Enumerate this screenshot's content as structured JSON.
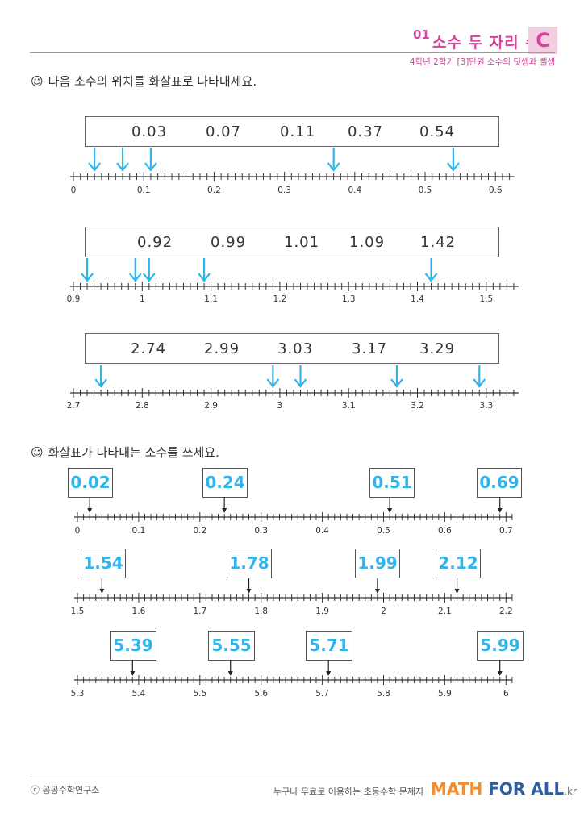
{
  "header": {
    "number": "01",
    "title": "소수 두 자리 수",
    "level": "C",
    "subtitle": "4학년 2학기 [3]단원 소수의 덧셈과 뺄셈"
  },
  "section1": {
    "instruction": "다음 소수의 위치를 화살표로 나타내세요.",
    "problems": [
      {
        "numbers": [
          "0.03",
          "0.07",
          "0.11",
          "0.37",
          "0.54"
        ],
        "start": 0,
        "step": 0.01,
        "ticks": 63,
        "majors": [
          0,
          0.1,
          0.2,
          0.3,
          0.4,
          0.5,
          0.6
        ],
        "major_labels": [
          "0",
          "0.1",
          "0.2",
          "0.3",
          "0.4",
          "0.5",
          "0.6"
        ],
        "arrows": [
          0.03,
          0.07,
          0.11,
          0.37,
          0.54
        ]
      },
      {
        "numbers": [
          "0.92",
          "0.99",
          "1.01",
          "1.09",
          "1.42"
        ],
        "start": 0.9,
        "step": 0.01,
        "ticks": 65,
        "majors": [
          0.9,
          1.0,
          1.1,
          1.2,
          1.3,
          1.4,
          1.5
        ],
        "major_labels": [
          "0.9",
          "1",
          "1.1",
          "1.2",
          "1.3",
          "1.4",
          "1.5"
        ],
        "arrows": [
          0.92,
          0.99,
          1.01,
          1.09,
          1.42
        ]
      },
      {
        "numbers": [
          "2.74",
          "2.99",
          "3.03",
          "3.17",
          "3.29"
        ],
        "start": 2.7,
        "step": 0.01,
        "ticks": 65,
        "majors": [
          2.7,
          2.8,
          2.9,
          3.0,
          3.1,
          3.2,
          3.3
        ],
        "major_labels": [
          "2.7",
          "2.8",
          "2.9",
          "3",
          "3.1",
          "3.2",
          "3.3"
        ],
        "arrows": [
          2.74,
          2.99,
          3.03,
          3.17,
          3.29
        ]
      }
    ]
  },
  "section2": {
    "instruction": "화살표가 나타내는 소수를 쓰세요.",
    "problems": [
      {
        "start": 0,
        "step": 0.01,
        "major_labels": [
          "0",
          "0.1",
          "0.2",
          "0.3",
          "0.4",
          "0.5",
          "0.6",
          "0.7"
        ],
        "answers": [
          {
            "value": 0.02,
            "text": "0.02"
          },
          {
            "value": 0.24,
            "text": "0.24"
          },
          {
            "value": 0.51,
            "text": "0.51"
          },
          {
            "value": 0.69,
            "text": "0.69"
          }
        ]
      },
      {
        "start": 1.5,
        "step": 0.01,
        "major_labels": [
          "1.5",
          "1.6",
          "1.7",
          "1.8",
          "1.9",
          "2",
          "2.1",
          "2.2"
        ],
        "answers": [
          {
            "value": 1.54,
            "text": "1.54"
          },
          {
            "value": 1.78,
            "text": "1.78"
          },
          {
            "value": 1.99,
            "text": "1.99"
          },
          {
            "value": 2.12,
            "text": "2.12"
          }
        ]
      },
      {
        "start": 5.3,
        "step": 0.01,
        "major_labels": [
          "5.3",
          "5.4",
          "5.5",
          "5.6",
          "5.7",
          "5.8",
          "5.9",
          "6"
        ],
        "answers": [
          {
            "value": 5.39,
            "text": "5.39"
          },
          {
            "value": 5.55,
            "text": "5.55"
          },
          {
            "value": 5.71,
            "text": "5.71"
          },
          {
            "value": 5.99,
            "text": "5.99"
          }
        ]
      }
    ]
  },
  "footer": {
    "copyright": "ⓒ 공공수학연구소",
    "tagline": "누구나 무료로 이용하는 초등수학 문제지",
    "brand_math": "MATH",
    "brand_forall": "FOR ALL",
    "brand_kr": ".kr"
  },
  "colors": {
    "accent": "#d8439b",
    "arrow": "#2fb5ec",
    "line": "#333333"
  }
}
